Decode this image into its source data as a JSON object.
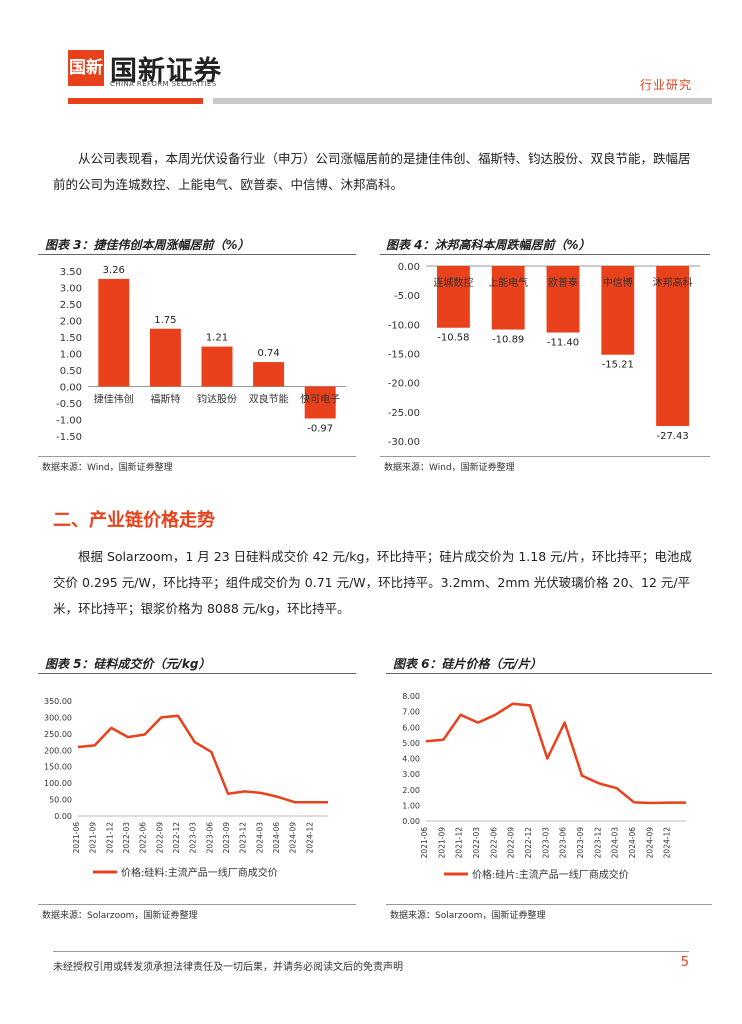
{
  "header": {
    "logo_glyph": "国新",
    "brand": "国新证券",
    "brand_en": "CHINA REFORM SECURITIES",
    "tag": "行业研究",
    "accent": "#e8411b"
  },
  "para1": "从公司表现看，本周光伏设备行业（申万）公司涨幅居前的是捷佳伟创、福斯特、钧达股份、双良节能，跌幅居前的公司为连城数控、上能电气、欧普泰、中信博、沐邦高科。",
  "fig3": {
    "title": "图表 3：捷佳伟创本周涨幅居前（%）",
    "source": "数据来源：Wind，国新证券整理"
  },
  "fig4": {
    "title": "图表 4：沐邦高科本周跌幅居前（%）",
    "source": "数据来源：Wind，国新证券整理"
  },
  "section2": "二、产业链价格走势",
  "para2": "根据 Solarzoom，1 月 23 日硅料成交价 42 元/kg，环比持平；硅片成交价为 1.18 元/片，环比持平；电池成交价 0.295 元/W，环比持平；组件成交价为 0.71 元/W，环比持平。3.2mm、2mm 光伏玻璃价格 20、12 元/平米，环比持平；银浆价格为 8088 元/kg，环比持平。",
  "fig5": {
    "title": "图表 5：硅料成交价（元/kg）",
    "source": "数据来源：Solarzoom，国新证券整理"
  },
  "fig6": {
    "title": "图表 6：硅片价格（元/片）",
    "source": "数据来源：Solarzoom，国新证券整理"
  },
  "footer": {
    "disclaimer": "未经授权引用或转发须承担法律责任及一切后果，并请务必阅读文后的免责声明",
    "page": "5"
  },
  "chart_data": [
    {
      "id": "fig3",
      "type": "bar",
      "title": "捷佳伟创本周涨幅居前（%）",
      "categories": [
        "捷佳伟创",
        "福斯特",
        "钧达股份",
        "双良节能",
        "快可电子"
      ],
      "values": [
        3.26,
        1.75,
        1.21,
        0.74,
        -0.97
      ],
      "labels": [
        "3.26",
        "1.75",
        "1.21",
        "0.74",
        "-0.97"
      ],
      "ylim": [
        -1.5,
        3.5
      ],
      "yticks": [
        "3.50",
        "3.00",
        "2.50",
        "2.00",
        "1.50",
        "1.00",
        "0.50",
        "0.00",
        "-0.50",
        "-1.00",
        "-1.50"
      ],
      "ytick_values": [
        3.5,
        3.0,
        2.5,
        2.0,
        1.5,
        1.0,
        0.5,
        0.0,
        -0.5,
        -1.0,
        -1.5
      ],
      "color": "#e8411b"
    },
    {
      "id": "fig4",
      "type": "bar",
      "title": "沐邦高科本周跌幅居前（%）",
      "categories": [
        "连城数控",
        "上能电气",
        "欧普泰",
        "中信博",
        "沐邦高科"
      ],
      "values": [
        -10.58,
        -10.89,
        -11.4,
        -15.21,
        -27.43
      ],
      "labels": [
        "-10.58",
        "-10.89",
        "-11.40",
        "-15.21",
        "-27.43"
      ],
      "ylim": [
        -30,
        0
      ],
      "yticks": [
        "0.00",
        "-5.00",
        "-10.00",
        "-15.00",
        "-20.00",
        "-25.00",
        "-30.00"
      ],
      "ytick_values": [
        0,
        -5,
        -10,
        -15,
        -20,
        -25,
        -30
      ],
      "color": "#e8411b"
    },
    {
      "id": "fig5",
      "type": "line",
      "title": "硅料成交价（元/kg）",
      "series_name": "价格:硅料:主流产品一线厂商成交价",
      "x": [
        "2021-06",
        "2021-09",
        "2021-12",
        "2022-03",
        "2022-06",
        "2022-09",
        "2022-12",
        "2023-03",
        "2023-06",
        "2023-09",
        "2023-12",
        "2024-03",
        "2024-06",
        "2024-09",
        "2024-12",
        "2025-01"
      ],
      "xticks": [
        "2021-06",
        "2021-09",
        "2021-12",
        "2022-03",
        "2022-06",
        "2022-09",
        "2022-12",
        "2023-03",
        "2023-06",
        "2023-09",
        "2023-12",
        "2024-03",
        "2024-06",
        "2024-09",
        "2024-12"
      ],
      "values": [
        210,
        215,
        268,
        240,
        248,
        300,
        305,
        225,
        195,
        68,
        75,
        70,
        58,
        42,
        42,
        42
      ],
      "ylim": [
        0,
        350
      ],
      "yticks": [
        "350.00",
        "300.00",
        "250.00",
        "200.00",
        "150.00",
        "100.00",
        "50.00",
        "0.00"
      ],
      "ytick_values": [
        350,
        300,
        250,
        200,
        150,
        100,
        50,
        0
      ],
      "color": "#e8411b"
    },
    {
      "id": "fig6",
      "type": "line",
      "title": "硅片价格（元/片）",
      "series_name": "价格:硅片:主流产品一线厂商成交价",
      "x": [
        "2021-06",
        "2021-09",
        "2021-12",
        "2022-03",
        "2022-06",
        "2022-09",
        "2022-12",
        "2023-03",
        "2023-06",
        "2023-09",
        "2023-12",
        "2024-03",
        "2024-06",
        "2024-09",
        "2024-12",
        "2025-01"
      ],
      "xticks": [
        "2021-06",
        "2021-09",
        "2021-12",
        "2022-03",
        "2022-06",
        "2022-09",
        "2022-12",
        "2023-03",
        "2023-06",
        "2023-09",
        "2023-12",
        "2024-03",
        "2024-06",
        "2024-09",
        "2024-12"
      ],
      "values": [
        5.1,
        5.2,
        6.8,
        6.3,
        6.8,
        7.5,
        7.4,
        4.0,
        6.3,
        2.9,
        2.4,
        2.1,
        1.2,
        1.15,
        1.18,
        1.18
      ],
      "ylim": [
        0,
        8
      ],
      "yticks": [
        "8.00",
        "7.00",
        "6.00",
        "5.00",
        "4.00",
        "3.00",
        "2.00",
        "1.00",
        "0.00"
      ],
      "ytick_values": [
        8,
        7,
        6,
        5,
        4,
        3,
        2,
        1,
        0
      ],
      "color": "#e8411b"
    }
  ]
}
